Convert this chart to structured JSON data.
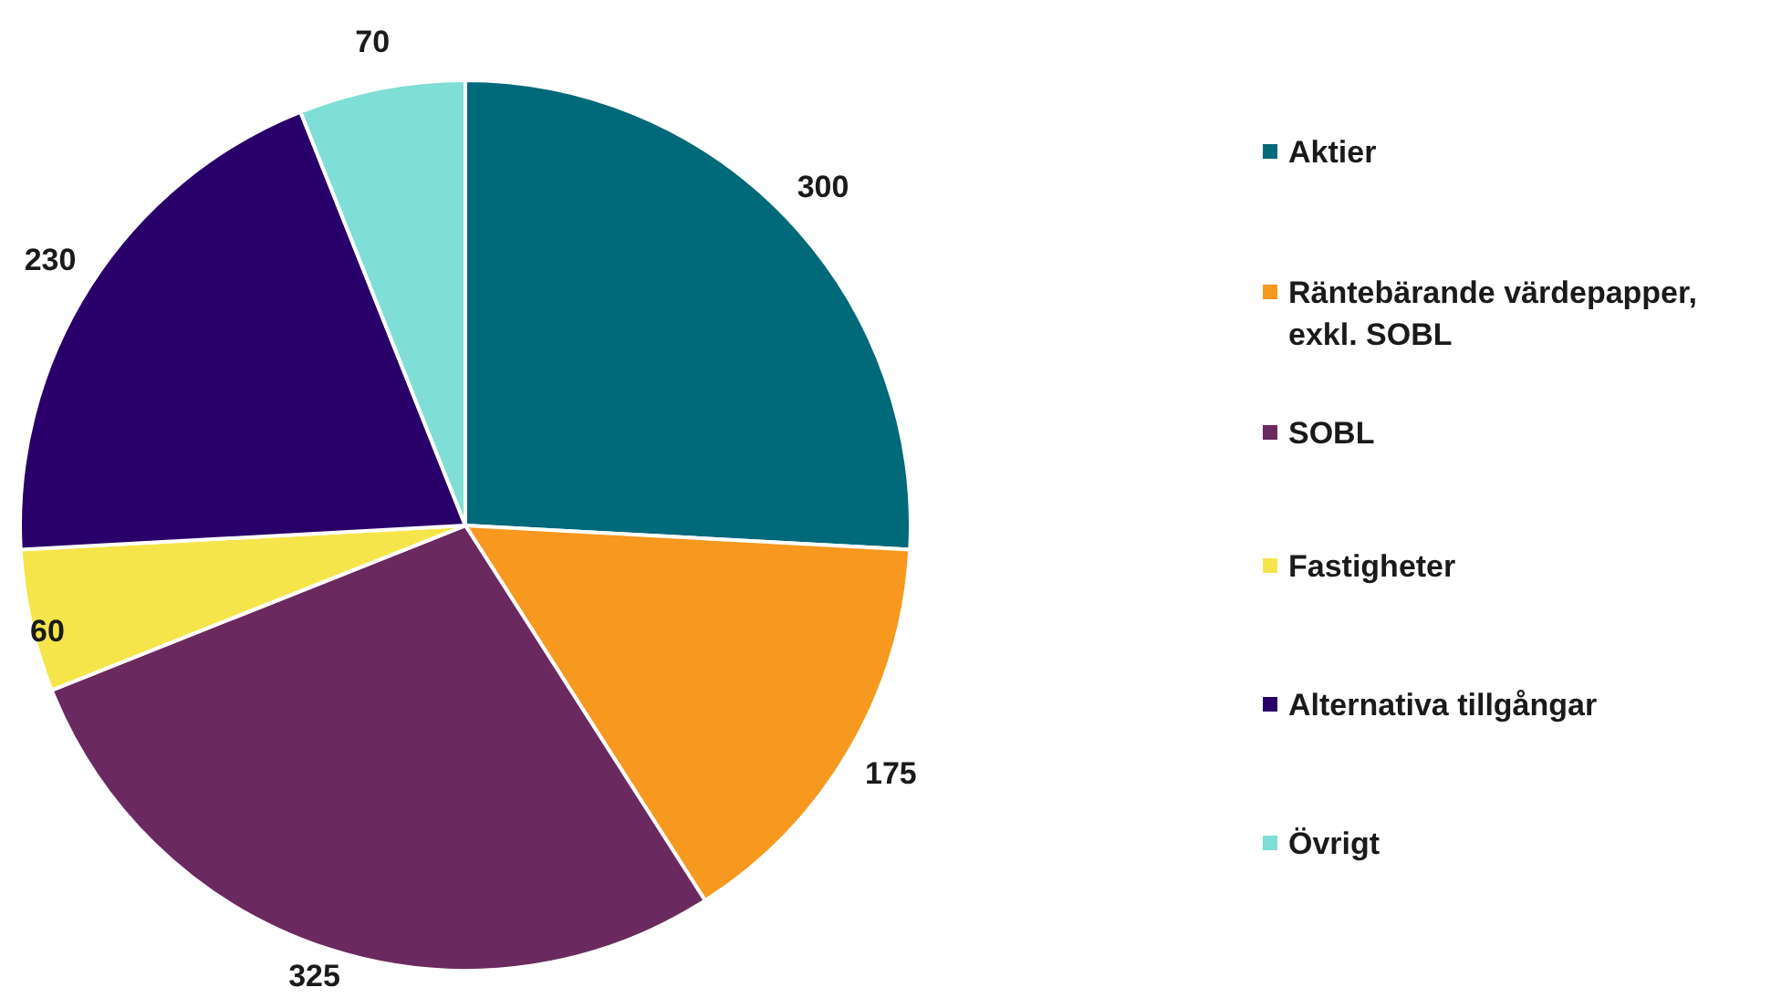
{
  "chart_data": {
    "type": "pie",
    "categories": [
      "Aktier",
      "Räntebärande värdepapper, exkl. SOBL",
      "SOBL",
      "Fastigheter",
      "Alternativa tillgångar",
      "Övrigt"
    ],
    "values": [
      300,
      175,
      325,
      60,
      230,
      70
    ],
    "colors": [
      "#00697a",
      "#f7981f",
      "#6b2a5f",
      "#f5e54a",
      "#29006a",
      "#7fded5"
    ],
    "data_labels": true,
    "legend": "right"
  }
}
